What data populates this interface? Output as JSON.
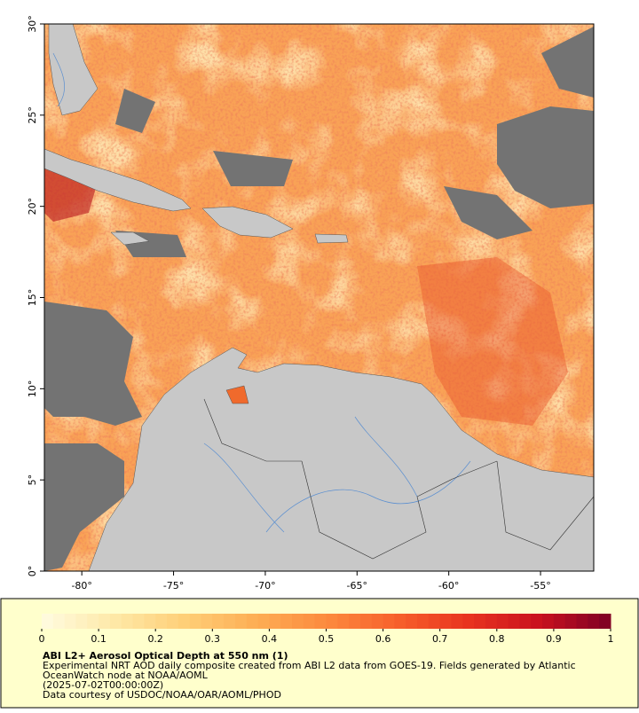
{
  "map": {
    "xlim": [
      -82.04,
      -52.1
    ],
    "ylim": [
      0,
      30
    ],
    "xticks": [
      {
        "value": -80,
        "label": "-80°"
      },
      {
        "value": -75,
        "label": "-75°"
      },
      {
        "value": -70,
        "label": "-70°"
      },
      {
        "value": -65,
        "label": "-65°"
      },
      {
        "value": -60,
        "label": "-60°"
      },
      {
        "value": -55,
        "label": "-55°"
      }
    ],
    "yticks": [
      {
        "value": 0,
        "label": "0°"
      },
      {
        "value": 5,
        "label": "5°"
      },
      {
        "value": 10,
        "label": "10°"
      },
      {
        "value": 15,
        "label": "15°"
      },
      {
        "value": 20,
        "label": "20°"
      },
      {
        "value": 25,
        "label": "25°"
      },
      {
        "value": 30,
        "label": "30°"
      }
    ]
  },
  "colorbar": {
    "range": [
      0,
      1
    ],
    "levels": 50,
    "ticks": [
      0,
      0.1,
      0.2,
      0.3,
      0.4,
      0.5,
      0.6,
      0.7,
      0.8,
      0.9,
      1
    ],
    "colors": [
      "#fffbe0",
      "#fee9a8",
      "#fecf78",
      "#fdae55",
      "#fc8a3e",
      "#f7602c",
      "#e8331f",
      "#c9111e",
      "#7d0025"
    ]
  },
  "legend": {
    "title": "ABI L2+ Aerosol Optical Depth at 550 nm (1)",
    "lines": [
      "Experimental NRT AOD daily composite created from ABI L2 data from GOES-19. Fields generated by Atlantic",
      "OceanWatch node at NOAA/AOML",
      "(2025-07-02T00:00:00Z)",
      "Data courtesy of USDOC/NOAA/OAR/AOML/PHOD"
    ]
  }
}
